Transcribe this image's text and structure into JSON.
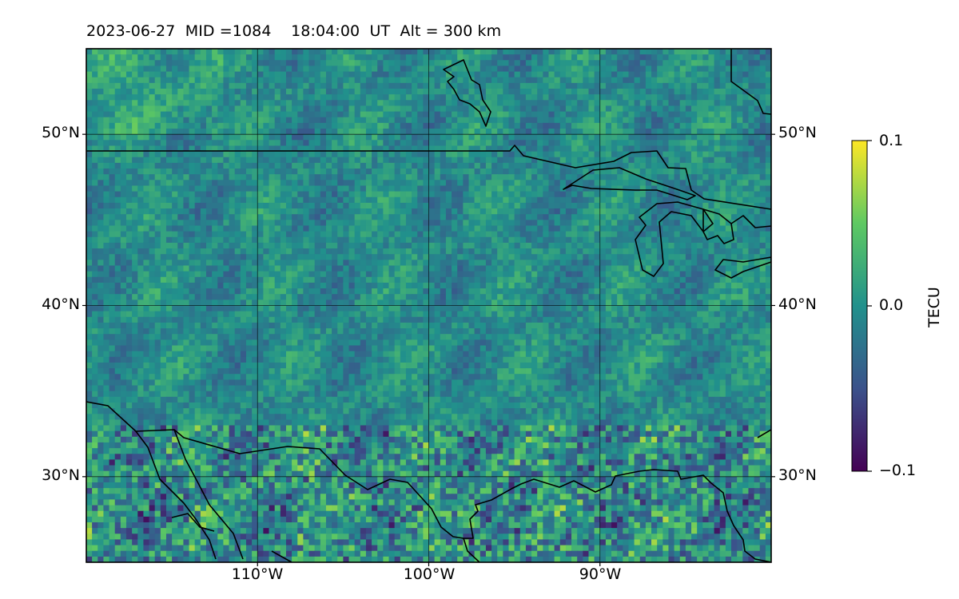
{
  "title": {
    "date": "2023-06-27",
    "mid": "MID =1084",
    "time": "18:04:00  UT",
    "alt": "Alt = 300 km"
  },
  "map": {
    "projection": "lat-lon",
    "lon_range": [
      -120,
      -80
    ],
    "lat_range": [
      25,
      55
    ],
    "gridlines": true,
    "lat_ticks": [
      {
        "value": 50,
        "label": "50°N"
      },
      {
        "value": 40,
        "label": "40°N"
      },
      {
        "value": 30,
        "label": "30°N"
      }
    ],
    "lon_ticks": [
      {
        "value": -110,
        "label": "110°W"
      },
      {
        "value": -100,
        "label": "100°W"
      },
      {
        "value": -90,
        "label": "90°W"
      }
    ],
    "features": [
      "coastlines",
      "country borders"
    ]
  },
  "colorbar": {
    "colormap": "viridis",
    "range": [
      -0.1,
      0.1
    ],
    "ticks": [
      {
        "value": 0.1,
        "label": "0.1"
      },
      {
        "value": 0.0,
        "label": "0.0"
      },
      {
        "value": -0.1,
        "label": "−0.1"
      }
    ],
    "label": "TECU",
    "colors": [
      "#440154",
      "#3b528b",
      "#21918c",
      "#5ec962",
      "#fde725"
    ]
  }
}
